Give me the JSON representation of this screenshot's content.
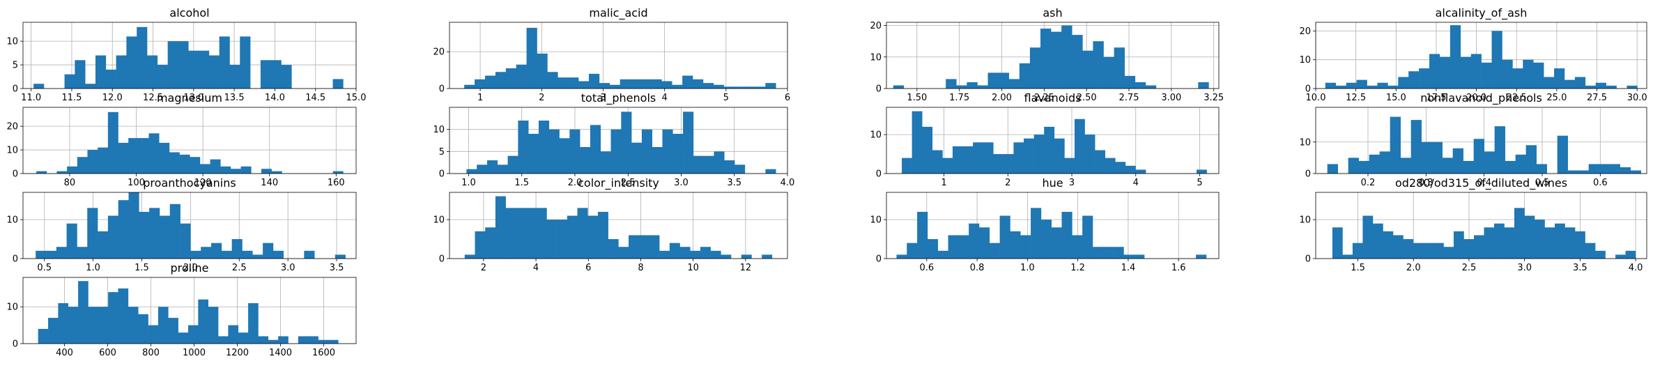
{
  "figure": {
    "background": "#ffffff",
    "bar_color": "#1f77b4",
    "grid_color": "#b0b0b0",
    "grid": true
  },
  "chart_data": [
    {
      "type": "bar",
      "title": "alcohol",
      "xlim": [
        10.9,
        15.0
      ],
      "ylim": [
        0,
        14
      ],
      "xticks": [
        11.0,
        11.5,
        12.0,
        12.5,
        13.0,
        13.5,
        14.0,
        14.5,
        15.0
      ],
      "xtick_labels": [
        "11.0",
        "11.5",
        "12.0",
        "12.5",
        "13.0",
        "13.5",
        "14.0",
        "14.5",
        "15.0"
      ],
      "yticks": [
        0,
        5,
        10
      ],
      "ytick_labels": [
        "0",
        "5",
        "10"
      ],
      "bin_start": 11.03,
      "bin_width": 0.127,
      "values": [
        1,
        0,
        0,
        3,
        6,
        1,
        7,
        4,
        7,
        11,
        13,
        7,
        5,
        10,
        10,
        8,
        8,
        7,
        11,
        5,
        11,
        0,
        6,
        6,
        5,
        0,
        0,
        0,
        0,
        2
      ]
    },
    {
      "type": "bar",
      "title": "malic_acid",
      "xlim": [
        0.5,
        6.0
      ],
      "ylim": [
        0,
        36
      ],
      "xticks": [
        1,
        2,
        3,
        4,
        5,
        6
      ],
      "xtick_labels": [
        "1",
        "2",
        "3",
        "4",
        "5",
        "6"
      ],
      "yticks": [
        0,
        20
      ],
      "ytick_labels": [
        "0",
        "20"
      ],
      "bin_start": 0.74,
      "bin_width": 0.169,
      "values": [
        2,
        5,
        7,
        9,
        11,
        13,
        33,
        19,
        9,
        6,
        6,
        4,
        8,
        3,
        2,
        5,
        5,
        5,
        5,
        4,
        2,
        7,
        5,
        3,
        2,
        1,
        1,
        1,
        1,
        3
      ]
    },
    {
      "type": "bar",
      "title": "ash",
      "xlim": [
        1.32,
        3.28
      ],
      "ylim": [
        0,
        21
      ],
      "xticks": [
        1.5,
        1.75,
        2.0,
        2.25,
        2.5,
        2.75,
        3.0,
        3.25
      ],
      "xtick_labels": [
        "1.50",
        "1.75",
        "2.00",
        "2.25",
        "2.50",
        "2.75",
        "3.00",
        "3.25"
      ],
      "yticks": [
        0,
        10,
        20
      ],
      "ytick_labels": [
        "0",
        "10",
        "20"
      ],
      "bin_start": 1.36,
      "bin_width": 0.062,
      "values": [
        1,
        0,
        0,
        0,
        0,
        3,
        1,
        2,
        1,
        5,
        5,
        3,
        8,
        13,
        19,
        18,
        20,
        17,
        12,
        15,
        10,
        13,
        4,
        2,
        1,
        0,
        0,
        0,
        0,
        2
      ]
    },
    {
      "type": "bar",
      "title": "alcalinity_of_ash",
      "xlim": [
        10.0,
        30.6
      ],
      "ylim": [
        0,
        23
      ],
      "xticks": [
        10.0,
        12.5,
        15.0,
        17.5,
        20.0,
        22.5,
        25.0,
        27.5,
        30.0
      ],
      "xtick_labels": [
        "10.0",
        "12.5",
        "15.0",
        "17.5",
        "20.0",
        "22.5",
        "25.0",
        "27.5",
        "30.0"
      ],
      "yticks": [
        0,
        10,
        20
      ],
      "ytick_labels": [
        "0",
        "10",
        "20"
      ],
      "bin_start": 10.6,
      "bin_width": 0.647,
      "values": [
        2,
        1,
        2,
        3,
        1,
        2,
        1,
        4,
        6,
        7,
        12,
        11,
        22,
        11,
        12,
        9,
        20,
        10,
        7,
        10,
        9,
        4,
        7,
        3,
        4,
        1,
        2,
        1,
        0,
        1
      ]
    },
    {
      "type": "bar",
      "title": "magnesium",
      "xlim": [
        66,
        166
      ],
      "ylim": [
        0,
        28
      ],
      "xticks": [
        80,
        100,
        120,
        140,
        160
      ],
      "xtick_labels": [
        "80",
        "100",
        "120",
        "140",
        "160"
      ],
      "yticks": [
        0,
        10,
        20
      ],
      "ytick_labels": [
        "0",
        "10",
        "20"
      ],
      "bin_start": 70,
      "bin_width": 3.07,
      "values": [
        1,
        0,
        1,
        3,
        7,
        10,
        11,
        26,
        13,
        15,
        15,
        17,
        13,
        9,
        8,
        7,
        4,
        6,
        3,
        2,
        3,
        0,
        2,
        1,
        0,
        0,
        0,
        0,
        0,
        1
      ]
    },
    {
      "type": "bar",
      "title": "total_phenols",
      "xlim": [
        0.82,
        4.0
      ],
      "ylim": [
        0,
        15
      ],
      "xticks": [
        1.0,
        1.5,
        2.0,
        2.5,
        3.0,
        3.5,
        4.0
      ],
      "xtick_labels": [
        "1.0",
        "1.5",
        "2.0",
        "2.5",
        "3.0",
        "3.5",
        "4.0"
      ],
      "yticks": [
        0,
        5,
        10
      ],
      "ytick_labels": [
        "0",
        "5",
        "10"
      ],
      "bin_start": 0.98,
      "bin_width": 0.097,
      "values": [
        1,
        2,
        3,
        2,
        4,
        12,
        9,
        12,
        10,
        8,
        10,
        6,
        11,
        5,
        10,
        14,
        7,
        10,
        6,
        10,
        9,
        14,
        4,
        4,
        5,
        3,
        2,
        0,
        0,
        1
      ]
    },
    {
      "type": "bar",
      "title": "flavanoids",
      "xlim": [
        0.1,
        5.3
      ],
      "ylim": [
        0,
        17
      ],
      "xticks": [
        1,
        2,
        3,
        4,
        5
      ],
      "xtick_labels": [
        "1",
        "2",
        "3",
        "4",
        "5"
      ],
      "yticks": [
        0,
        10
      ],
      "ytick_labels": [
        "0",
        "10"
      ],
      "bin_start": 0.34,
      "bin_width": 0.159,
      "values": [
        4,
        16,
        12,
        6,
        4,
        7,
        7,
        8,
        8,
        5,
        5,
        8,
        9,
        10,
        12,
        9,
        4,
        14,
        10,
        6,
        4,
        3,
        2,
        1,
        0,
        0,
        0,
        0,
        0,
        1
      ]
    },
    {
      "type": "bar",
      "title": "nonflavanoid_phenols",
      "xlim": [
        0.11,
        0.68
      ],
      "ylim": [
        0,
        21
      ],
      "xticks": [
        0.2,
        0.3,
        0.4,
        0.5,
        0.6
      ],
      "xtick_labels": [
        "0.2",
        "0.3",
        "0.4",
        "0.5",
        "0.6"
      ],
      "yticks": [
        0,
        10
      ],
      "ytick_labels": [
        "0",
        "10"
      ],
      "bin_start": 0.13,
      "bin_width": 0.018,
      "values": [
        3,
        0,
        5,
        4,
        6,
        7,
        18,
        5,
        17,
        10,
        10,
        5,
        8,
        4,
        11,
        7,
        15,
        4,
        6,
        9,
        3,
        0,
        12,
        1,
        1,
        3,
        3,
        3,
        2,
        1
      ]
    },
    {
      "type": "bar",
      "title": "proanthocyanins",
      "xlim": [
        0.28,
        3.7
      ],
      "ylim": [
        0,
        17
      ],
      "xticks": [
        0.5,
        1.0,
        1.5,
        2.0,
        2.5,
        3.0,
        3.5
      ],
      "xtick_labels": [
        "0.5",
        "1.0",
        "1.5",
        "2.0",
        "2.5",
        "3.0",
        "3.5"
      ],
      "yticks": [
        0,
        10
      ],
      "ytick_labels": [
        "0",
        "10"
      ],
      "bin_start": 0.41,
      "bin_width": 0.106,
      "values": [
        2,
        2,
        3,
        9,
        3,
        13,
        7,
        11,
        15,
        17,
        12,
        13,
        11,
        14,
        9,
        2,
        3,
        4,
        2,
        5,
        2,
        1,
        4,
        2,
        0,
        0,
        2,
        0,
        0,
        1
      ]
    },
    {
      "type": "bar",
      "title": "color_intensity",
      "xlim": [
        0.7,
        13.6
      ],
      "ylim": [
        0,
        17
      ],
      "xticks": [
        2,
        4,
        6,
        8,
        10,
        12
      ],
      "xtick_labels": [
        "2",
        "4",
        "6",
        "8",
        "10",
        "12"
      ],
      "yticks": [
        0,
        10
      ],
      "ytick_labels": [
        "0",
        "10"
      ],
      "bin_start": 1.28,
      "bin_width": 0.391,
      "values": [
        1,
        7,
        8,
        16,
        13,
        13,
        13,
        13,
        10,
        10,
        11,
        13,
        11,
        12,
        5,
        3,
        6,
        6,
        6,
        2,
        4,
        3,
        2,
        3,
        2,
        1,
        0,
        1,
        0,
        1
      ]
    },
    {
      "type": "bar",
      "title": "hue",
      "xlim": [
        0.44,
        1.76
      ],
      "ylim": [
        0,
        17
      ],
      "xticks": [
        0.6,
        0.8,
        1.0,
        1.2,
        1.4,
        1.6
      ],
      "xtick_labels": [
        "0.6",
        "0.8",
        "1.0",
        "1.2",
        "1.4",
        "1.6"
      ],
      "yticks": [
        0,
        10
      ],
      "ytick_labels": [
        "0",
        "10"
      ],
      "bin_start": 0.48,
      "bin_width": 0.041,
      "values": [
        1,
        4,
        12,
        5,
        2,
        6,
        6,
        9,
        8,
        4,
        11,
        7,
        6,
        13,
        10,
        8,
        12,
        6,
        11,
        3,
        3,
        3,
        1,
        1,
        0,
        0,
        0,
        0,
        0,
        1
      ]
    },
    {
      "type": "bar",
      "title": "od280/od315_of_diluted_wines",
      "xlim": [
        1.12,
        4.1
      ],
      "ylim": [
        0,
        17
      ],
      "xticks": [
        1.5,
        2.0,
        2.5,
        3.0,
        3.5,
        4.0
      ],
      "xtick_labels": [
        "1.5",
        "2.0",
        "2.5",
        "3.0",
        "3.5",
        "4.0"
      ],
      "yticks": [
        0,
        10
      ],
      "ytick_labels": [
        "0",
        "10"
      ],
      "bin_start": 1.27,
      "bin_width": 0.091,
      "values": [
        8,
        1,
        4,
        11,
        9,
        7,
        6,
        5,
        4,
        4,
        4,
        3,
        7,
        5,
        6,
        8,
        9,
        8,
        13,
        11,
        10,
        8,
        9,
        8,
        7,
        4,
        2,
        0,
        1,
        2
      ]
    },
    {
      "type": "bar",
      "title": "proline",
      "xlim": [
        208,
        1750
      ],
      "ylim": [
        0,
        18
      ],
      "xticks": [
        400,
        600,
        800,
        1000,
        1200,
        1400,
        1600
      ],
      "xtick_labels": [
        "400",
        "600",
        "800",
        "1000",
        "1200",
        "1400",
        "1600"
      ],
      "yticks": [
        0,
        10
      ],
      "ytick_labels": [
        "0",
        "10"
      ],
      "bin_start": 278,
      "bin_width": 46.3,
      "values": [
        4,
        7,
        11,
        10,
        17,
        10,
        10,
        14,
        15,
        10,
        8,
        5,
        10,
        7,
        3,
        5,
        12,
        10,
        2,
        5,
        3,
        11,
        2,
        1,
        2,
        0,
        2,
        2,
        1,
        1
      ]
    }
  ]
}
